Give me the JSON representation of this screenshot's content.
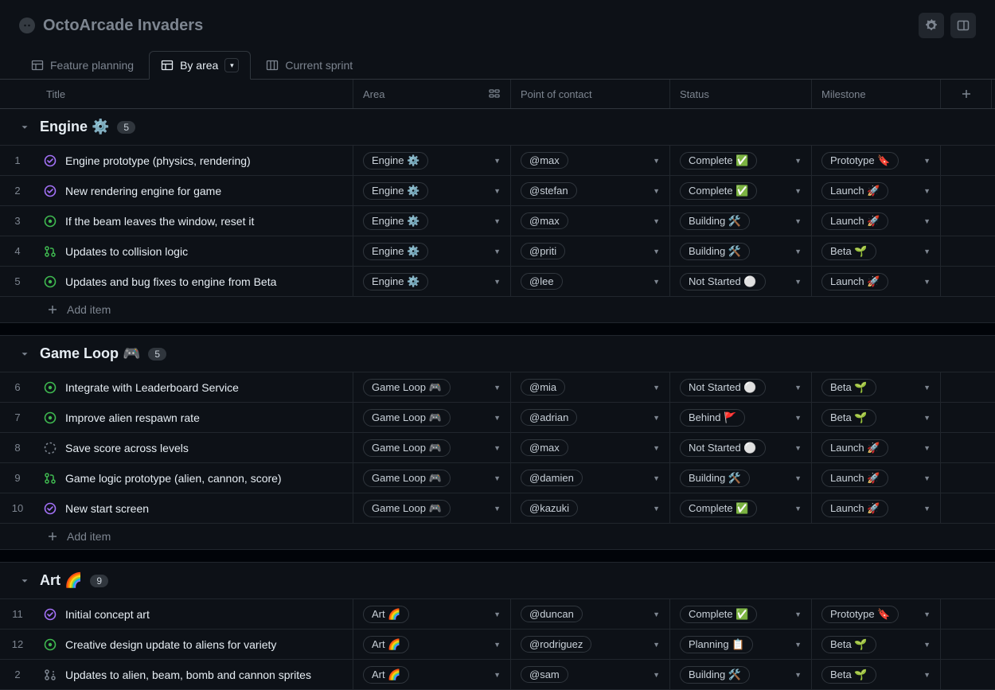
{
  "project": {
    "title": "OctoArcade Invaders"
  },
  "tabs": [
    {
      "label": "Feature planning",
      "icon": "table-icon"
    },
    {
      "label": "By area",
      "icon": "table-icon"
    },
    {
      "label": "Current sprint",
      "icon": "board-icon"
    }
  ],
  "active_tab": 1,
  "columns": {
    "title": "Title",
    "area": "Area",
    "contact": "Point of contact",
    "status": "Status",
    "milestone": "Milestone"
  },
  "add_item_label": "Add item",
  "icon_colors": {
    "issue_open": "#3fb950",
    "issue_done": "#a371f7",
    "pr_open": "#3fb950",
    "draft": "#7d8590"
  },
  "groups": [
    {
      "name": "Engine ⚙️",
      "count": "5",
      "rows": [
        {
          "num": "1",
          "icon": "issue-done",
          "title": "Engine prototype (physics, rendering)",
          "area": "Engine ⚙️",
          "contact": "@max",
          "status": "Complete ✅",
          "milestone": "Prototype 🔖"
        },
        {
          "num": "2",
          "icon": "issue-done",
          "title": "New rendering engine for game",
          "area": "Engine ⚙️",
          "contact": "@stefan",
          "status": "Complete ✅",
          "milestone": "Launch 🚀"
        },
        {
          "num": "3",
          "icon": "issue-open",
          "title": "If the beam leaves the window, reset it",
          "area": "Engine ⚙️",
          "contact": "@max",
          "status": "Building 🛠️",
          "milestone": "Launch 🚀"
        },
        {
          "num": "4",
          "icon": "pr-open",
          "title": "Updates to collision logic",
          "area": "Engine ⚙️",
          "contact": "@priti",
          "status": "Building 🛠️",
          "milestone": "Beta 🌱"
        },
        {
          "num": "5",
          "icon": "issue-open",
          "title": "Updates and bug fixes to engine from Beta",
          "area": "Engine ⚙️",
          "contact": "@lee",
          "status": "Not Started ⚪",
          "milestone": "Launch 🚀"
        }
      ]
    },
    {
      "name": "Game Loop 🎮",
      "count": "5",
      "rows": [
        {
          "num": "6",
          "icon": "issue-open",
          "title": "Integrate with Leaderboard Service",
          "area": "Game Loop 🎮",
          "contact": "@mia",
          "status": "Not Started ⚪",
          "milestone": "Beta 🌱"
        },
        {
          "num": "7",
          "icon": "issue-open",
          "title": "Improve alien respawn rate",
          "area": "Game Loop 🎮",
          "contact": "@adrian",
          "status": "Behind 🚩",
          "milestone": "Beta 🌱"
        },
        {
          "num": "8",
          "icon": "draft",
          "title": "Save score across levels",
          "area": "Game Loop 🎮",
          "contact": "@max",
          "status": "Not Started ⚪",
          "milestone": "Launch 🚀"
        },
        {
          "num": "9",
          "icon": "pr-open",
          "title": "Game logic prototype (alien, cannon, score)",
          "area": "Game Loop 🎮",
          "contact": "@damien",
          "status": "Building 🛠️",
          "milestone": "Launch 🚀"
        },
        {
          "num": "10",
          "icon": "issue-done",
          "title": "New start screen",
          "area": "Game Loop 🎮",
          "contact": "@kazuki",
          "status": "Complete ✅",
          "milestone": "Launch 🚀"
        }
      ]
    },
    {
      "name": "Art 🌈",
      "count": "9",
      "rows": [
        {
          "num": "11",
          "icon": "issue-done",
          "title": "Initial concept art",
          "area": "Art 🌈",
          "contact": "@duncan",
          "status": "Complete ✅",
          "milestone": "Prototype 🔖"
        },
        {
          "num": "12",
          "icon": "issue-open",
          "title": "Creative design update to aliens for variety",
          "area": "Art 🌈",
          "contact": "@rodriguez",
          "status": "Planning 📋",
          "milestone": "Beta 🌱"
        },
        {
          "num": "2",
          "icon": "pr-draft",
          "title": "Updates to alien, beam, bomb and cannon sprites",
          "area": "Art 🌈",
          "contact": "@sam",
          "status": "Building 🛠️",
          "milestone": "Beta 🌱"
        }
      ]
    }
  ]
}
